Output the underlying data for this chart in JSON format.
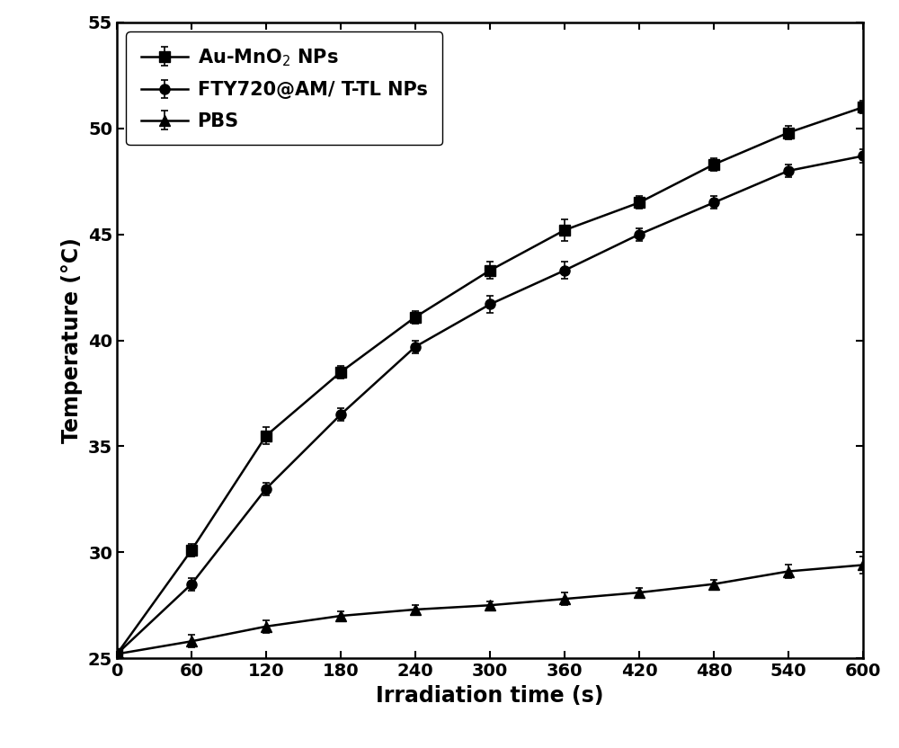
{
  "x": [
    0,
    60,
    120,
    180,
    240,
    300,
    360,
    420,
    480,
    540,
    600
  ],
  "au_mno2": [
    25.2,
    30.1,
    35.5,
    38.5,
    41.1,
    43.3,
    45.2,
    46.5,
    48.3,
    49.8,
    51.0
  ],
  "au_mno2_err": [
    0.0,
    0.3,
    0.4,
    0.3,
    0.3,
    0.4,
    0.5,
    0.3,
    0.3,
    0.3,
    0.3
  ],
  "fty720": [
    25.2,
    28.5,
    33.0,
    36.5,
    39.7,
    41.7,
    43.3,
    45.0,
    46.5,
    48.0,
    48.7
  ],
  "fty720_err": [
    0.0,
    0.3,
    0.3,
    0.3,
    0.3,
    0.4,
    0.4,
    0.3,
    0.3,
    0.3,
    0.3
  ],
  "pbs": [
    25.2,
    25.8,
    26.5,
    27.0,
    27.3,
    27.5,
    27.8,
    28.1,
    28.5,
    29.1,
    29.4
  ],
  "pbs_err": [
    0.0,
    0.3,
    0.3,
    0.2,
    0.2,
    0.2,
    0.3,
    0.2,
    0.2,
    0.3,
    0.4
  ],
  "xlabel": "Irradiation time (s)",
  "ylabel": "Temperature (°C)",
  "xlim": [
    0,
    600
  ],
  "ylim": [
    25,
    55
  ],
  "xticks": [
    0,
    60,
    120,
    180,
    240,
    300,
    360,
    420,
    480,
    540,
    600
  ],
  "yticks": [
    25,
    30,
    35,
    40,
    45,
    50,
    55
  ],
  "legend_labels": [
    "Au-MnO$_2$ NPs",
    "FTY720@AM/ T-TL NPs",
    "PBS"
  ],
  "line_color": "#000000",
  "marker_square": "s",
  "marker_circle": "o",
  "marker_triangle": "^",
  "marker_size": 8,
  "line_width": 1.8,
  "font_size_label": 17,
  "font_size_tick": 14,
  "font_size_legend": 15
}
